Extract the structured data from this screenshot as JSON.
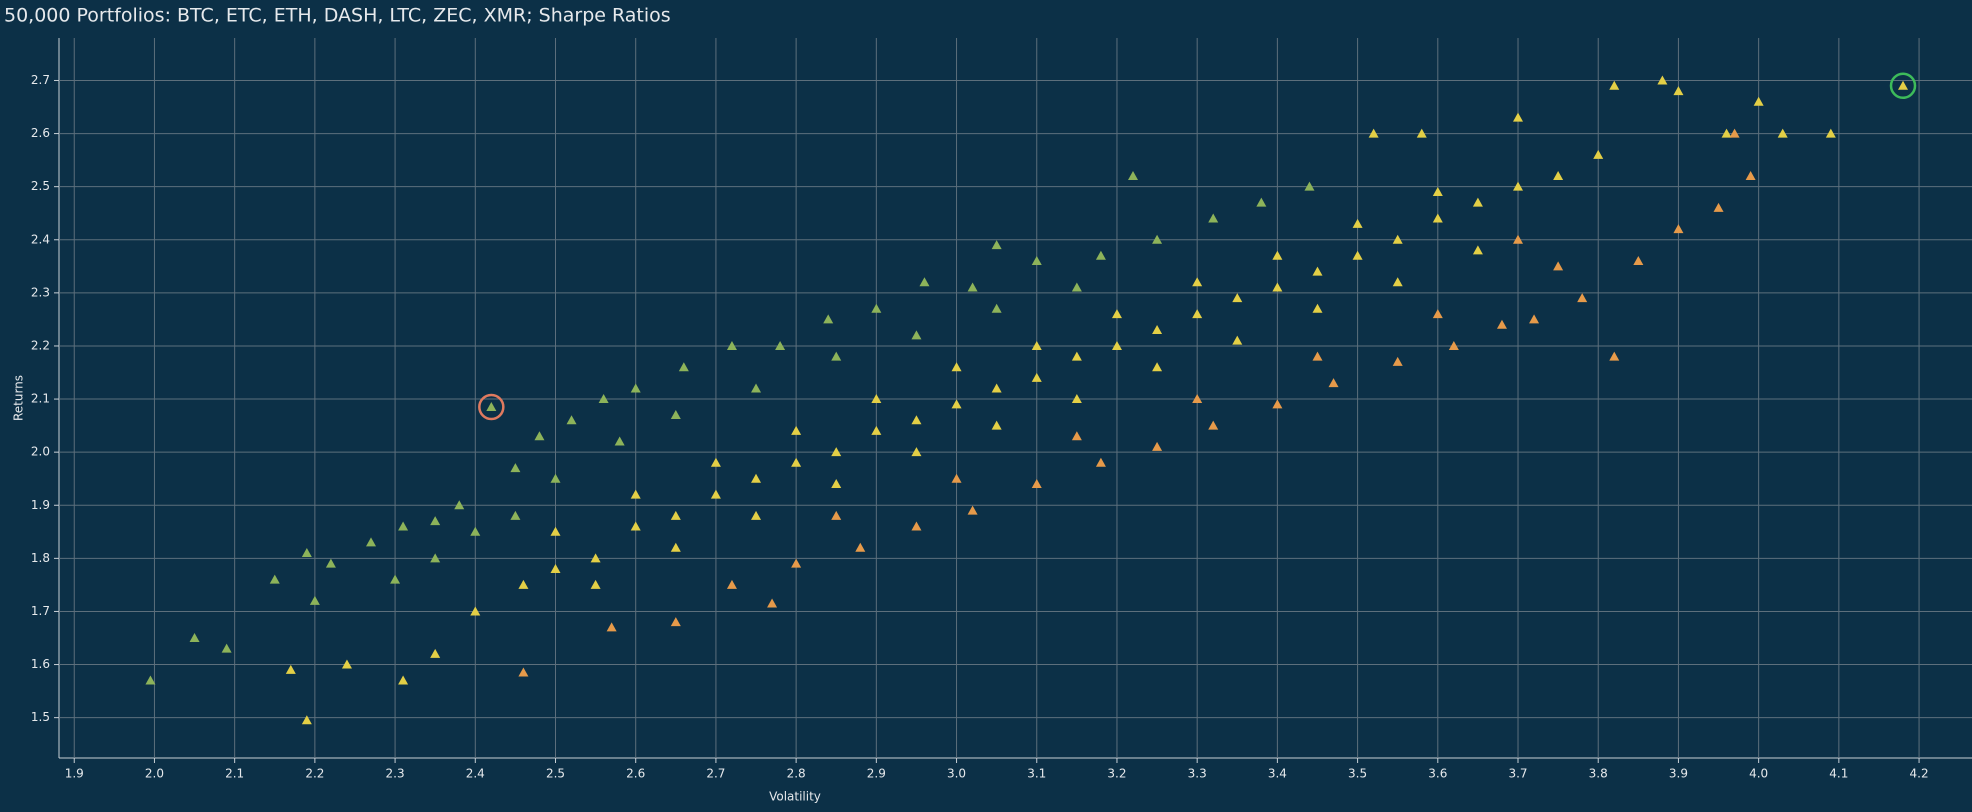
{
  "chart_data": {
    "type": "scatter",
    "title": "50,000 Portfolios: BTC, ETC, ETH, DASH, LTC, ZEC, XMR; Sharpe Ratios",
    "xlabel": "Volatility",
    "ylabel": "Returns",
    "xlim": [
      1.881,
      4.266
    ],
    "ylim": [
      1.424,
      2.78
    ],
    "xticks": [
      1.9,
      {
        "value": 2.0,
        "label": "2.0"
      },
      2.1,
      2.2,
      2.3,
      2.4,
      2.5,
      2.6,
      2.7,
      2.8,
      2.9,
      {
        "value": 3.0,
        "label": "3.0"
      },
      3.1,
      3.2,
      3.3,
      3.4,
      3.5,
      3.6,
      3.7,
      3.8,
      3.9,
      {
        "value": 4.0,
        "label": "4.0"
      },
      4.1,
      4.2
    ],
    "yticks": [
      1.5,
      1.6,
      1.7,
      1.8,
      1.9,
      {
        "value": 2.0,
        "label": "2.0"
      },
      2.1,
      2.2,
      2.3,
      2.4,
      2.5,
      2.6,
      2.7
    ],
    "grid": true,
    "series": [
      {
        "color": "#8db35a",
        "x": [
          1.995,
          2.05,
          2.09,
          2.15,
          2.19,
          2.22,
          2.27,
          2.31,
          2.35,
          2.38,
          2.42,
          2.45,
          2.48,
          2.52,
          2.56,
          2.6,
          2.66,
          2.72,
          2.78,
          2.84,
          2.9,
          2.96,
          3.02,
          3.05,
          3.1,
          3.18,
          3.22,
          3.25,
          3.32,
          3.38,
          3.44,
          2.35,
          2.4,
          2.5,
          2.58,
          2.65,
          2.75,
          2.85,
          2.95,
          3.05,
          3.15,
          2.2,
          2.3,
          2.45
        ],
        "values": [
          1.57,
          1.65,
          1.63,
          1.76,
          1.81,
          1.79,
          1.83,
          1.86,
          1.87,
          1.9,
          2.085,
          1.97,
          2.03,
          2.06,
          2.1,
          2.12,
          2.16,
          2.2,
          2.2,
          2.25,
          2.27,
          2.32,
          2.31,
          2.39,
          2.36,
          2.37,
          2.52,
          2.4,
          2.44,
          2.47,
          2.5,
          1.8,
          1.85,
          1.95,
          2.02,
          2.07,
          2.12,
          2.18,
          2.22,
          2.27,
          2.31,
          1.72,
          1.76,
          1.88
        ]
      },
      {
        "color": "#e3cf46",
        "x": [
          2.19,
          2.17,
          2.24,
          2.31,
          2.35,
          2.4,
          2.46,
          2.5,
          2.55,
          2.6,
          2.65,
          2.7,
          2.75,
          2.8,
          2.85,
          2.9,
          2.95,
          3.0,
          3.05,
          3.1,
          3.15,
          3.2,
          3.25,
          3.3,
          3.35,
          3.4,
          3.45,
          3.5,
          3.55,
          3.6,
          3.65,
          3.7,
          3.75,
          3.8,
          3.88,
          3.9,
          3.96,
          4.0,
          4.03,
          4.09,
          4.18,
          3.52,
          3.58,
          3.7,
          3.82,
          2.5,
          2.6,
          2.7,
          2.8,
          2.9,
          3.0,
          3.1,
          3.2,
          3.3,
          3.4,
          3.5,
          3.6,
          2.55,
          2.65,
          2.75,
          2.85,
          2.95,
          3.05,
          3.15,
          3.25,
          3.35,
          3.45,
          3.55,
          3.65
        ],
        "values": [
          1.495,
          1.59,
          1.6,
          1.57,
          1.62,
          1.7,
          1.75,
          1.78,
          1.8,
          1.86,
          1.88,
          1.92,
          1.95,
          1.98,
          2.0,
          2.04,
          2.06,
          2.09,
          2.12,
          2.14,
          2.18,
          2.2,
          2.23,
          2.26,
          2.29,
          2.31,
          2.34,
          2.37,
          2.4,
          2.44,
          2.47,
          2.5,
          2.52,
          2.56,
          2.7,
          2.68,
          2.6,
          2.66,
          2.6,
          2.6,
          2.69,
          2.6,
          2.6,
          2.63,
          2.69,
          1.85,
          1.92,
          1.98,
          2.04,
          2.1,
          2.16,
          2.2,
          2.26,
          2.32,
          2.37,
          2.43,
          2.49,
          1.75,
          1.82,
          1.88,
          1.94,
          2.0,
          2.05,
          2.1,
          2.16,
          2.21,
          2.27,
          2.32,
          2.38
        ]
      },
      {
        "color": "#e69a4a",
        "x": [
          2.46,
          2.57,
          2.65,
          2.77,
          2.72,
          2.8,
          2.88,
          2.95,
          3.02,
          3.1,
          3.18,
          3.25,
          3.32,
          3.4,
          3.47,
          3.55,
          3.62,
          3.68,
          3.72,
          3.78,
          3.82,
          3.85,
          3.9,
          3.95,
          3.99,
          3.97,
          2.85,
          3.0,
          3.15,
          3.3,
          3.45,
          3.6,
          3.75,
          3.7
        ],
        "values": [
          1.585,
          1.67,
          1.68,
          1.715,
          1.75,
          1.79,
          1.82,
          1.86,
          1.89,
          1.94,
          1.98,
          2.01,
          2.05,
          2.09,
          2.13,
          2.17,
          2.2,
          2.24,
          2.25,
          2.29,
          2.18,
          2.36,
          2.42,
          2.46,
          2.52,
          2.6,
          1.88,
          1.95,
          2.03,
          2.1,
          2.18,
          2.26,
          2.35,
          2.4
        ]
      }
    ],
    "highlights": [
      {
        "x": 2.42,
        "y": 2.085,
        "color": "#e07a5f"
      },
      {
        "x": 4.18,
        "y": 2.69,
        "color": "#3dbb5a"
      }
    ]
  }
}
